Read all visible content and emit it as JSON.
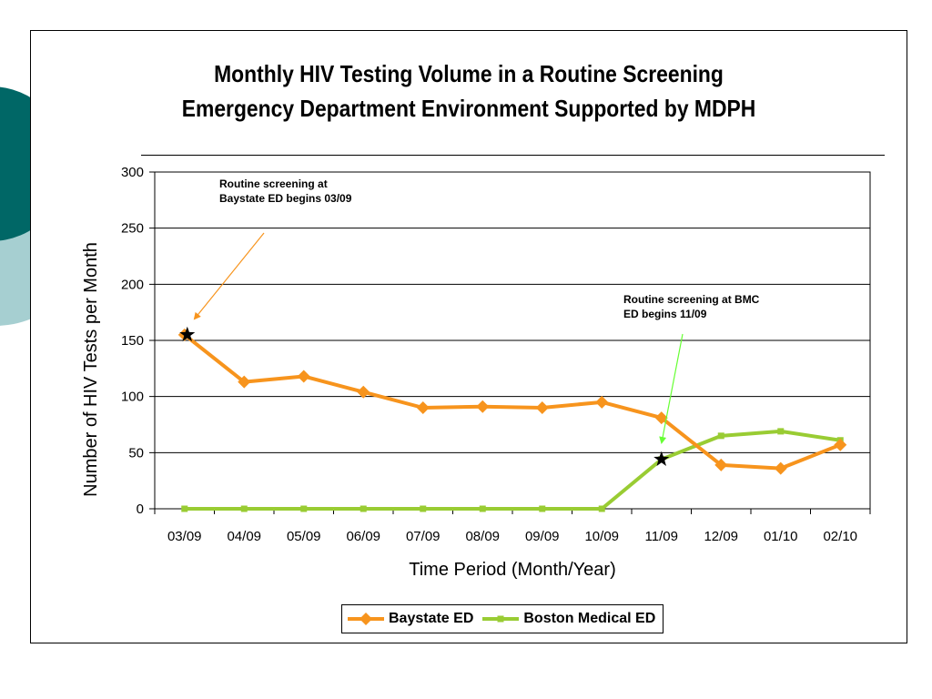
{
  "chart_data": {
    "type": "line",
    "title": [
      "Monthly HIV Testing Volume in a Routine Screening",
      "Emergency Department Environment Supported by MDPH"
    ],
    "xlabel": "Time Period (Month/Year)",
    "ylabel": "Number of HIV Tests per Month",
    "ylim": [
      0,
      300
    ],
    "yticks": [
      0,
      50,
      100,
      150,
      200,
      250,
      300
    ],
    "grid": true,
    "legend": "bottom",
    "categories": [
      "03/09",
      "04/09",
      "05/09",
      "06/09",
      "07/09",
      "08/09",
      "09/09",
      "10/09",
      "11/09",
      "12/09",
      "01/10",
      "02/10"
    ],
    "series": [
      {
        "name": "Baystate ED",
        "color": "#f7941d",
        "marker": "diamond",
        "values": [
          155,
          113,
          118,
          104,
          90,
          91,
          90,
          95,
          81,
          39,
          36,
          57
        ]
      },
      {
        "name": "Boston Medical ED",
        "color": "#99cc33",
        "marker": "square",
        "values": [
          0,
          0,
          0,
          0,
          0,
          0,
          0,
          0,
          44,
          65,
          69,
          61
        ]
      }
    ],
    "annotations": [
      {
        "lines": [
          "Routine screening at",
          "Baystate ED begins 03/09"
        ],
        "category": "03/09",
        "value": 155,
        "arrow_color": "#f7941d"
      },
      {
        "lines": [
          "Routine screening at BMC",
          "ED begins 11/09"
        ],
        "category": "11/09",
        "value": 44,
        "arrow_color": "#66ff33"
      }
    ]
  },
  "decor": {
    "circle_dark": "#006766",
    "circle_light": "#a6cfd1"
  }
}
